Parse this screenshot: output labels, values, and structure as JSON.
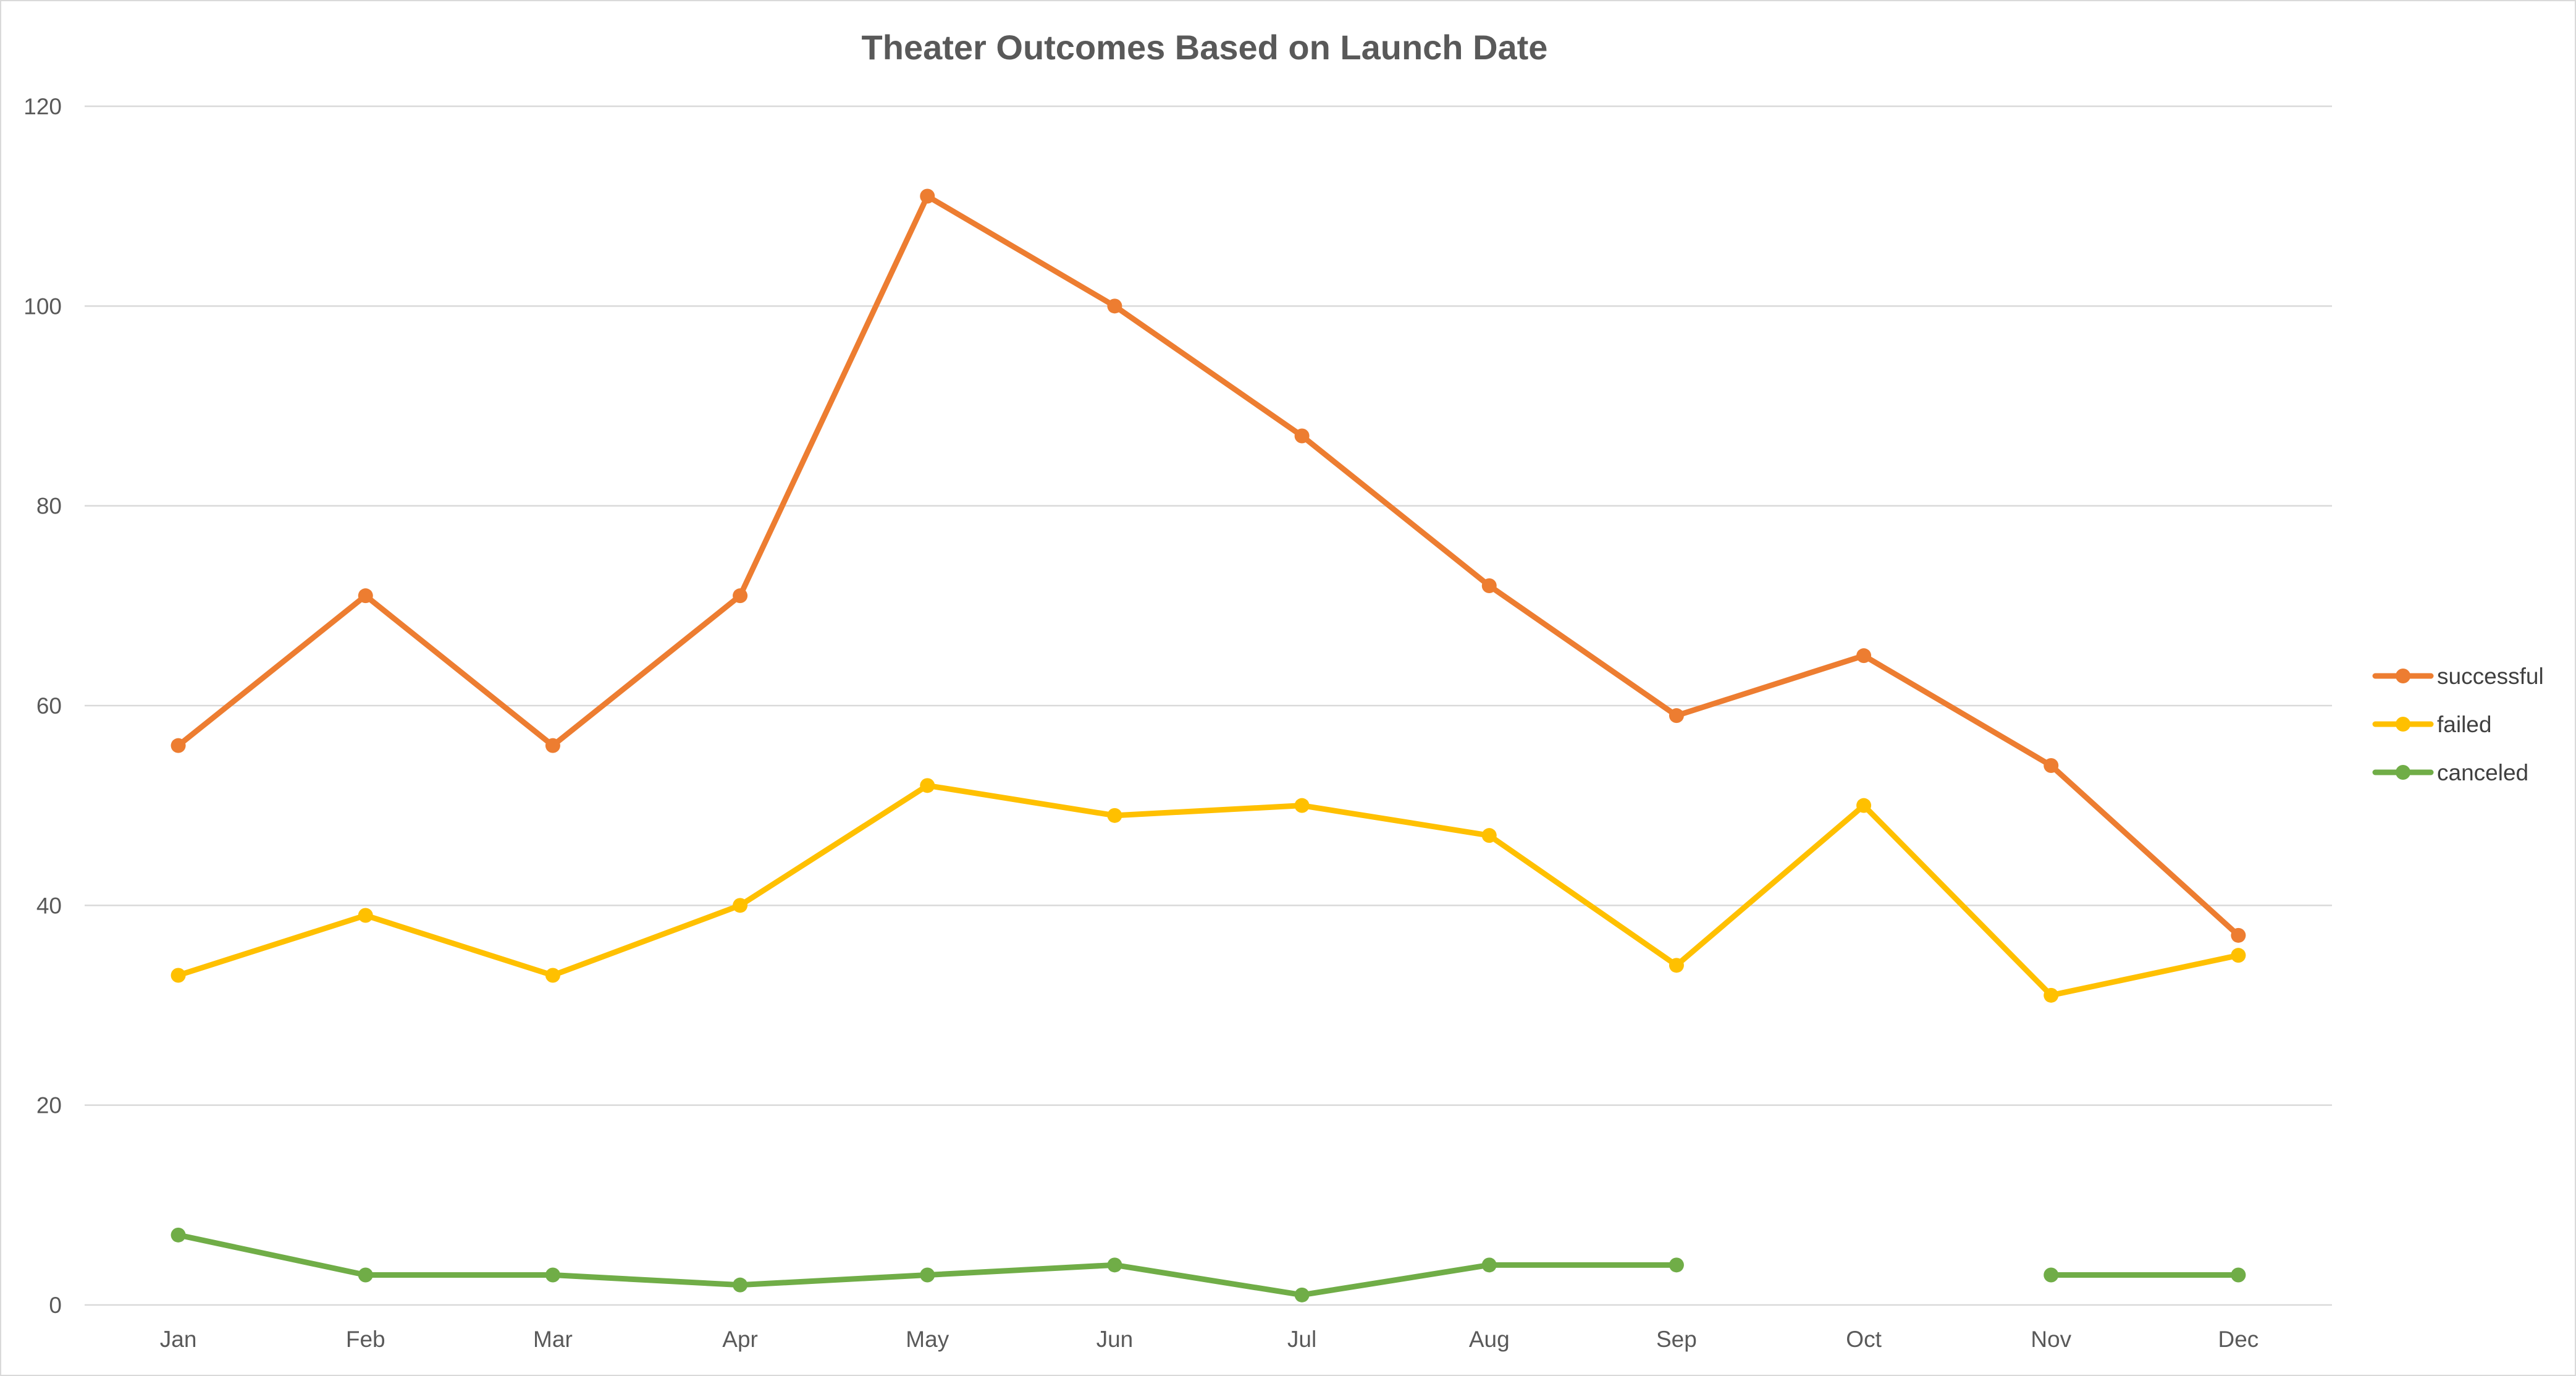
{
  "chart_data": {
    "type": "line",
    "title": "Theater Outcomes Based on Launch Date",
    "xlabel": "",
    "ylabel": "",
    "categories": [
      "Jan",
      "Feb",
      "Mar",
      "Apr",
      "May",
      "Jun",
      "Jul",
      "Aug",
      "Sep",
      "Oct",
      "Nov",
      "Dec"
    ],
    "ylim": [
      0,
      120
    ],
    "yticks": [
      "0",
      "20",
      "40",
      "60",
      "80",
      "100",
      "120"
    ],
    "grid": "horizontal",
    "legend_position": "right",
    "series": [
      {
        "name": "successful",
        "color": "#ED7D31",
        "values": [
          56,
          71,
          56,
          71,
          111,
          100,
          87,
          72,
          59,
          65,
          54,
          37
        ]
      },
      {
        "name": "failed",
        "color": "#FFC000",
        "values": [
          33,
          39,
          33,
          40,
          52,
          49,
          50,
          47,
          34,
          50,
          31,
          35
        ]
      },
      {
        "name": "canceled",
        "color": "#70AD47",
        "values": [
          7,
          3,
          3,
          2,
          3,
          4,
          1,
          4,
          4,
          null,
          3,
          3
        ]
      }
    ]
  }
}
